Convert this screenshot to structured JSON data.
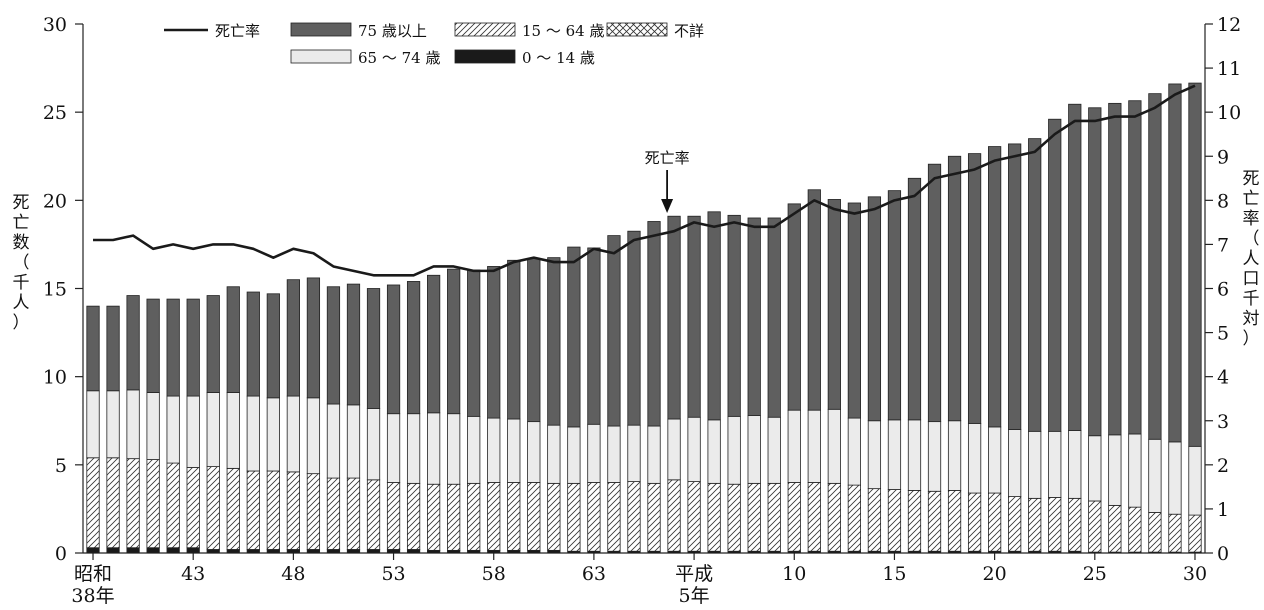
{
  "chart_data": {
    "type": "bar",
    "stacked": true,
    "categories": [
      "S38",
      "S39",
      "S40",
      "S41",
      "S42",
      "S43",
      "S44",
      "S45",
      "S46",
      "S47",
      "S48",
      "S49",
      "S50",
      "S51",
      "S52",
      "S53",
      "S54",
      "S55",
      "S56",
      "S57",
      "S58",
      "S59",
      "S60",
      "S61",
      "S62",
      "S63",
      "H1",
      "H2",
      "H3",
      "H4",
      "H5",
      "H6",
      "H7",
      "H8",
      "H9",
      "H10",
      "H11",
      "H12",
      "H13",
      "H14",
      "H15",
      "H16",
      "H17",
      "H18",
      "H19",
      "H20",
      "H21",
      "H22",
      "H23",
      "H24",
      "H25",
      "H26",
      "H27",
      "H28",
      "H29",
      "H30"
    ],
    "x_tick_labels": [
      {
        "index": 0,
        "lines": [
          "昭和",
          "38年"
        ]
      },
      {
        "index": 5,
        "lines": [
          "43"
        ]
      },
      {
        "index": 10,
        "lines": [
          "48"
        ]
      },
      {
        "index": 15,
        "lines": [
          "53"
        ]
      },
      {
        "index": 20,
        "lines": [
          "58"
        ]
      },
      {
        "index": 25,
        "lines": [
          "63"
        ]
      },
      {
        "index": 30,
        "lines": [
          "平成",
          "5年"
        ]
      },
      {
        "index": 35,
        "lines": [
          "10"
        ]
      },
      {
        "index": 40,
        "lines": [
          "15"
        ]
      },
      {
        "index": 45,
        "lines": [
          "20"
        ]
      },
      {
        "index": 50,
        "lines": [
          "25"
        ]
      },
      {
        "index": 55,
        "lines": [
          "30"
        ]
      }
    ],
    "ylabel": "死亡数（千人）",
    "ylabel_right": "死亡率（人口千対）",
    "ylim": [
      0,
      30
    ],
    "yticks": [
      0,
      5,
      10,
      15,
      20,
      25,
      30
    ],
    "ylim_right": [
      0,
      12
    ],
    "yticks_right": [
      0,
      1,
      2,
      3,
      4,
      5,
      6,
      7,
      8,
      9,
      10,
      11,
      12
    ],
    "legend": [
      {
        "label": "死亡率",
        "kind": "line"
      },
      {
        "label": "75 歳以上",
        "kind": "dark"
      },
      {
        "label": "15 ～ 64 歳",
        "kind": "hatch"
      },
      {
        "label": "不詳",
        "kind": "cross"
      },
      {
        "label": "65 ～ 74 歳",
        "kind": "light"
      },
      {
        "label": "0 ～ 14 歳",
        "kind": "black"
      }
    ],
    "legend_position": "top-left",
    "annotation": {
      "label": "死亡率",
      "index": 30
    },
    "series": [
      {
        "name": "0 ～ 14 歳",
        "kind": "black",
        "values": [
          0.3,
          0.3,
          0.3,
          0.3,
          0.3,
          0.3,
          0.2,
          0.2,
          0.2,
          0.2,
          0.2,
          0.2,
          0.2,
          0.2,
          0.2,
          0.2,
          0.2,
          0.15,
          0.15,
          0.15,
          0.15,
          0.15,
          0.15,
          0.15,
          0.1,
          0.1,
          0.1,
          0.1,
          0.1,
          0.1,
          0.1,
          0.1,
          0.1,
          0.1,
          0.1,
          0.1,
          0.1,
          0.1,
          0.1,
          0.1,
          0.1,
          0.1,
          0.1,
          0.1,
          0.1,
          0.1,
          0.1,
          0.1,
          0.1,
          0.1,
          0.05,
          0.05,
          0.05,
          0.05,
          0.05,
          0.05
        ]
      },
      {
        "name": "15 ～ 64 歳",
        "kind": "hatch",
        "values": [
          5.1,
          5.1,
          5.05,
          5.0,
          4.8,
          4.55,
          4.7,
          4.6,
          4.45,
          4.45,
          4.4,
          4.3,
          4.05,
          4.05,
          3.95,
          3.8,
          3.75,
          3.75,
          3.75,
          3.8,
          3.85,
          3.85,
          3.85,
          3.8,
          3.85,
          3.9,
          3.9,
          3.95,
          3.85,
          4.05,
          3.95,
          3.85,
          3.8,
          3.85,
          3.85,
          3.9,
          3.9,
          3.85,
          3.75,
          3.55,
          3.5,
          3.45,
          3.4,
          3.45,
          3.3,
          3.3,
          3.1,
          3.0,
          3.05,
          3.0,
          2.9,
          2.65,
          2.55,
          2.25,
          2.15,
          2.1
        ]
      },
      {
        "name": "65 ～ 74 歳",
        "kind": "light",
        "values": [
          3.8,
          3.8,
          3.9,
          3.8,
          3.8,
          4.05,
          4.2,
          4.3,
          4.25,
          4.15,
          4.3,
          4.3,
          4.2,
          4.15,
          4.05,
          3.9,
          3.95,
          4.05,
          4.0,
          3.8,
          3.65,
          3.6,
          3.45,
          3.3,
          3.2,
          3.3,
          3.2,
          3.2,
          3.25,
          3.45,
          3.65,
          3.6,
          3.85,
          3.85,
          3.75,
          4.1,
          4.1,
          4.2,
          3.8,
          3.85,
          3.95,
          4.0,
          3.95,
          3.95,
          3.95,
          3.75,
          3.8,
          3.8,
          3.75,
          3.85,
          3.7,
          4.0,
          4.15,
          4.15,
          4.1,
          3.9
        ]
      },
      {
        "name": "75 歳以上",
        "kind": "dark",
        "values": [
          4.8,
          4.8,
          5.35,
          5.3,
          5.5,
          5.5,
          5.5,
          6.0,
          5.9,
          5.9,
          6.6,
          6.8,
          6.65,
          6.85,
          6.8,
          7.3,
          7.5,
          7.8,
          8.2,
          8.3,
          8.6,
          9.0,
          9.25,
          9.5,
          10.2,
          10.0,
          10.8,
          11.0,
          11.6,
          11.5,
          11.4,
          11.8,
          11.4,
          11.2,
          11.3,
          11.7,
          12.5,
          11.9,
          12.2,
          12.7,
          13.0,
          13.7,
          14.6,
          15.0,
          15.3,
          15.9,
          16.2,
          16.6,
          17.7,
          18.5,
          18.6,
          18.8,
          18.9,
          19.6,
          20.3,
          20.6
        ]
      },
      {
        "name": "不詳",
        "kind": "cross",
        "values": [
          0,
          0,
          0,
          0,
          0,
          0,
          0,
          0,
          0,
          0,
          0,
          0,
          0,
          0,
          0,
          0,
          0,
          0,
          0,
          0,
          0,
          0,
          0,
          0,
          0,
          0,
          0,
          0,
          0,
          0,
          0,
          0,
          0,
          0,
          0,
          0,
          0,
          0,
          0,
          0,
          0,
          0,
          0,
          0,
          0,
          0,
          0,
          0,
          0,
          0,
          0,
          0,
          0,
          0,
          0,
          0
        ]
      }
    ],
    "line_series": {
      "name": "死亡率",
      "axis": "right",
      "values": [
        7.1,
        7.1,
        7.2,
        6.9,
        7.0,
        6.9,
        7.0,
        7.0,
        6.9,
        6.7,
        6.9,
        6.8,
        6.5,
        6.4,
        6.3,
        6.3,
        6.3,
        6.5,
        6.5,
        6.4,
        6.4,
        6.6,
        6.7,
        6.6,
        6.6,
        6.9,
        6.8,
        7.1,
        7.2,
        7.3,
        7.5,
        7.4,
        7.5,
        7.4,
        7.4,
        7.7,
        8.0,
        7.8,
        7.7,
        7.8,
        8.0,
        8.1,
        8.5,
        8.6,
        8.7,
        8.9,
        9.0,
        9.1,
        9.5,
        9.8,
        9.8,
        9.9,
        9.9,
        10.1,
        10.4,
        10.6
      ]
    },
    "colors": {
      "dark": "#5f5f5f",
      "light": "#ebebeb",
      "black": "#1a1a1a",
      "line": "#1a1a1a",
      "axis": "#222222"
    }
  }
}
